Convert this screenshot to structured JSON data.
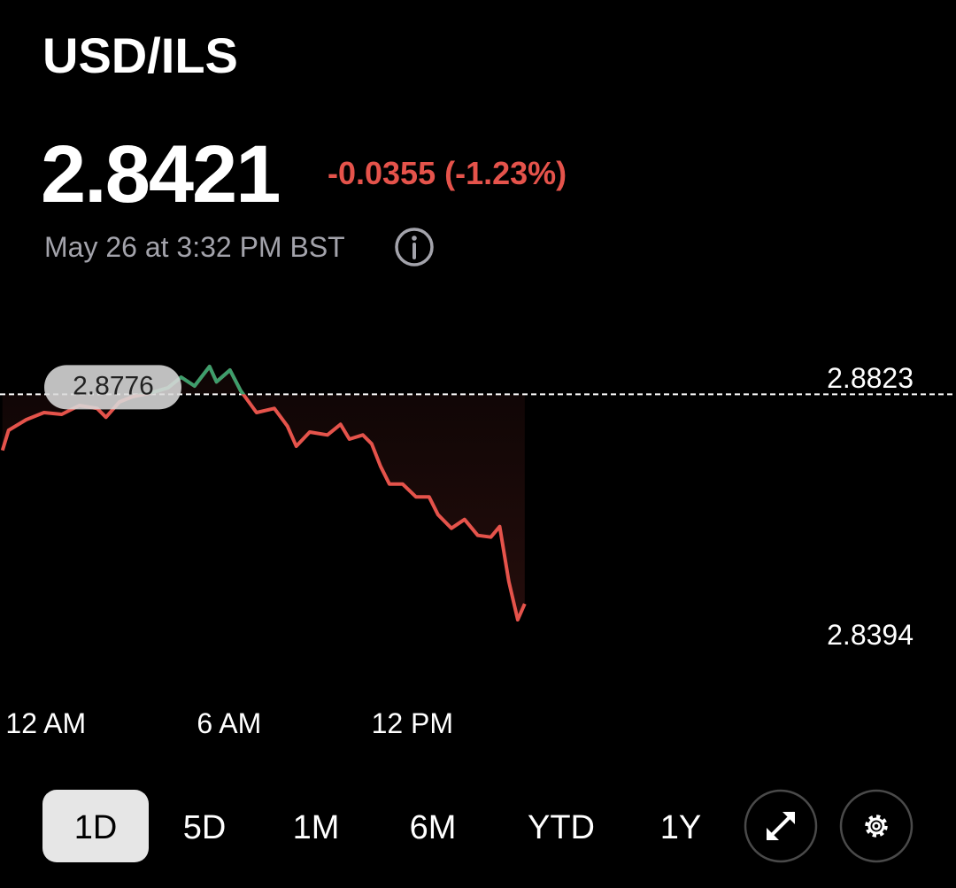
{
  "header": {
    "title": "USD/ILS",
    "price": 2.8421,
    "change": {
      "value": -0.0355,
      "label": "-0.0355"
    },
    "change_percent": {
      "value": -1.23,
      "label": "(-1.23%)"
    },
    "timestamp": "May 26 at 3:32 PM BST"
  },
  "chart_data": {
    "type": "line",
    "x": [
      -1.42,
      -1.22,
      -0.64,
      -0.06,
      0.52,
      1.1,
      1.68,
      1.97,
      2.41,
      2.84,
      3.42,
      4.0,
      4.43,
      4.87,
      5.36,
      5.59,
      6.03,
      6.38,
      6.9,
      7.48,
      7.91,
      8.2,
      8.64,
      9.22,
      9.65,
      9.94,
      10.38,
      10.67,
      10.96,
      11.25,
      11.68,
      12.12,
      12.55,
      12.84,
      13.28,
      13.71,
      14.14,
      14.57,
      14.86,
      15.16,
      15.45,
      15.68
    ],
    "values": [
      2.8681,
      2.8715,
      2.8733,
      2.8745,
      2.8742,
      2.8757,
      2.8752,
      2.8737,
      2.8763,
      2.8772,
      2.8778,
      2.8787,
      2.8805,
      2.879,
      2.8823,
      2.8797,
      2.8817,
      2.8782,
      2.8745,
      2.8752,
      2.8722,
      2.8688,
      2.8712,
      2.8707,
      2.8725,
      2.87,
      2.8707,
      2.8692,
      2.8654,
      2.8624,
      2.8624,
      2.8602,
      2.8602,
      2.8572,
      2.8549,
      2.8564,
      2.8537,
      2.8534,
      2.8552,
      2.8459,
      2.8394,
      2.8421
    ],
    "previous_close": 2.8776,
    "up_color": "#3d9e6c",
    "down_color": "#e5534b",
    "xlim": [
      -1.5,
      29.8
    ],
    "xticks": [
      {
        "value": 0,
        "label": "12 AM"
      },
      {
        "value": 6,
        "label": "6 AM"
      },
      {
        "value": 12,
        "label": "12 PM"
      }
    ],
    "ylim": [
      2.8394,
      2.8823
    ],
    "yticks": [
      2.8823,
      2.8394
    ]
  },
  "ranges": [
    "1D",
    "5D",
    "1M",
    "6M",
    "YTD",
    "1Y"
  ],
  "selected_range": "1D"
}
